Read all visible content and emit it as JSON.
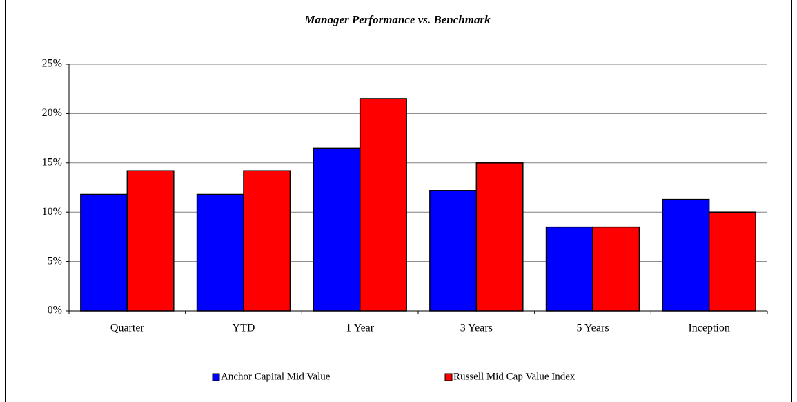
{
  "chart_data": {
    "type": "bar",
    "title": "Manager Performance vs. Benchmark",
    "categories": [
      "Quarter",
      "YTD",
      "1 Year",
      "3 Years",
      "5 Years",
      "Inception"
    ],
    "series": [
      {
        "name": "Anchor Capital Mid Value",
        "color": "#0000ff",
        "values": [
          11.8,
          11.8,
          16.5,
          12.2,
          8.5,
          11.3
        ]
      },
      {
        "name": "Russell Mid Cap Value Index",
        "color": "#ff0000",
        "values": [
          14.2,
          14.2,
          21.5,
          15.0,
          8.5,
          10.0
        ]
      }
    ],
    "ylim": [
      0,
      25
    ],
    "yticks": [
      {
        "value": 0,
        "label": "0%"
      },
      {
        "value": 5,
        "label": "5%"
      },
      {
        "value": 10,
        "label": "10%"
      },
      {
        "value": 15,
        "label": "15%"
      },
      {
        "value": 20,
        "label": "20%"
      },
      {
        "value": 25,
        "label": "25%"
      }
    ],
    "grid": true,
    "legend": "bottom"
  }
}
